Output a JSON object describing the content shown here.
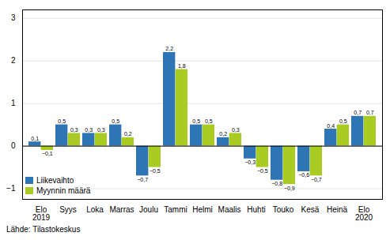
{
  "chart_data": {
    "type": "bar",
    "categories": [
      "Elo\n2019",
      "Syys",
      "Loka",
      "Marras",
      "Joulu",
      "Tammi",
      "Helmi",
      "Maalis",
      "Huhti",
      "Touko",
      "Kesä",
      "Heinä",
      "Elo\n2020"
    ],
    "series": [
      {
        "name": "Liikevaihto",
        "color": "#2E75B6",
        "values": [
          0.1,
          0.5,
          0.3,
          0.5,
          -0.7,
          2.2,
          0.5,
          0.2,
          -0.3,
          -0.8,
          -0.6,
          0.4,
          0.7
        ],
        "value_labels": [
          "0,1",
          "0,5",
          "0,3",
          "0,5",
          "−0,7",
          "2,2",
          "0,5",
          "0,2",
          "−0,3",
          "−0,8",
          "−0,6",
          "0,4",
          "0,7"
        ]
      },
      {
        "name": "Myynnin määrä",
        "color": "#AACC22",
        "values": [
          -0.1,
          0.3,
          0.3,
          0.2,
          -0.5,
          1.8,
          0.5,
          0.3,
          -0.5,
          -0.9,
          -0.7,
          0.5,
          0.7
        ],
        "value_labels": [
          "−0,1",
          "0,3",
          "0,3",
          "0,2",
          "−0,5",
          "1,8",
          "0,5",
          "0,3",
          "−0,5",
          "−0,9",
          "−0,7",
          "0,5",
          "0,7"
        ]
      }
    ],
    "ylim": [
      -1.25,
      3.2
    ],
    "yticks": [
      {
        "value": -1,
        "label": "−1"
      },
      0,
      1,
      2,
      3
    ],
    "grid": true,
    "legend": "lower left",
    "data_labels": true,
    "annotations": [
      "Lähde: Tilastokeskus"
    ]
  }
}
